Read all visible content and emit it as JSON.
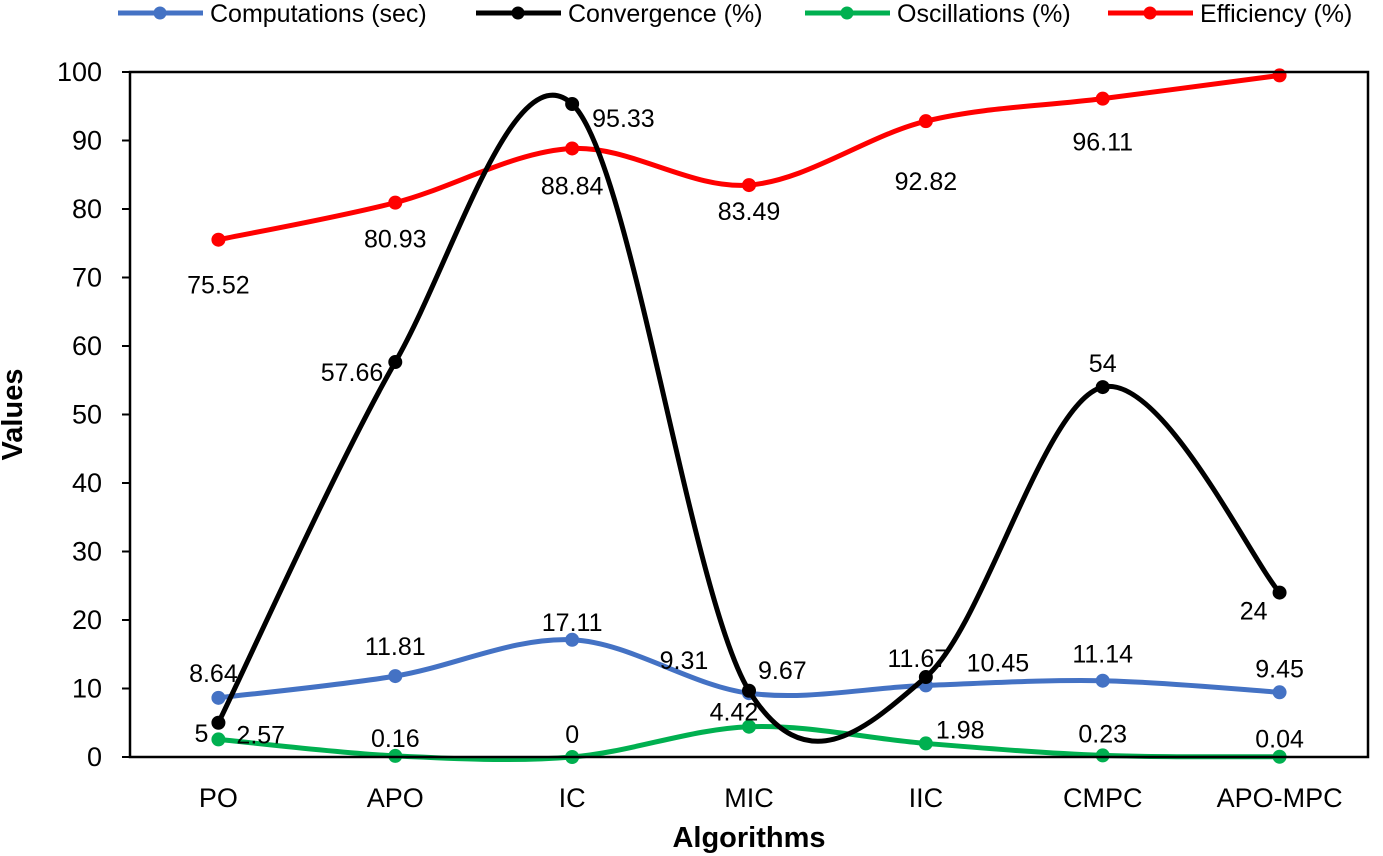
{
  "chart_data": {
    "type": "line",
    "title": "",
    "xlabel": "Algorithms",
    "ylabel": "Values",
    "ylim": [
      0,
      100
    ],
    "yticks": [
      0,
      10,
      20,
      30,
      40,
      50,
      60,
      70,
      80,
      90,
      100
    ],
    "grid": false,
    "legend_position": "top",
    "categories": [
      "PO",
      "APO",
      "IC",
      "MIC",
      "IIC",
      "CMPC",
      "APO-MPC"
    ],
    "series": [
      {
        "name": "Computations (sec)",
        "color": "#4472C4",
        "values": [
          8.64,
          11.81,
          17.11,
          9.31,
          10.45,
          11.14,
          9.45
        ],
        "labels": [
          "8.64",
          "11.81",
          "17.11",
          "9.31",
          "10.45",
          "11.14",
          "9.45"
        ]
      },
      {
        "name": "Convergence (%)",
        "color": "#000000",
        "values": [
          5,
          57.66,
          95.33,
          9.67,
          11.67,
          54,
          24
        ],
        "labels": [
          "5",
          "57.66",
          "95.33",
          "9.67",
          "11.67",
          "54",
          "24"
        ]
      },
      {
        "name": "Oscillations (%)",
        "color": "#00B050",
        "values": [
          2.57,
          0.16,
          0,
          4.42,
          1.98,
          0.23,
          0.04
        ],
        "labels": [
          "2.57",
          "0.16",
          "0",
          "4.42",
          "1.98",
          "0.23",
          "0.04"
        ]
      },
      {
        "name": "Efficiency (%)",
        "color": "#FF0000",
        "values": [
          75.52,
          80.93,
          88.84,
          83.49,
          92.82,
          96.11,
          99.5
        ],
        "labels": [
          "75.52",
          "80.93",
          "88.84",
          "83.49",
          "92.82",
          "96.11",
          ""
        ]
      }
    ]
  }
}
